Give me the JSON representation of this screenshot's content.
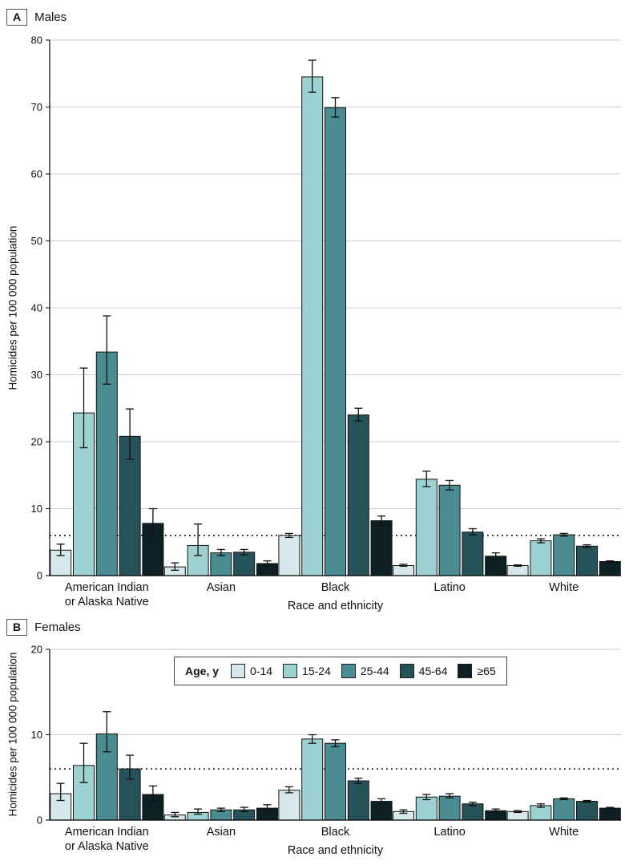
{
  "panels": {
    "a": {
      "letter": "A",
      "title": "Males"
    },
    "b": {
      "letter": "B",
      "title": "Females"
    }
  },
  "legend": {
    "title": "Age, y",
    "items": [
      {
        "label": "0-14",
        "color": "#d6e8ea"
      },
      {
        "label": "15-24",
        "color": "#9ed2d2"
      },
      {
        "label": "25-44",
        "color": "#4b8c93"
      },
      {
        "label": "45-64",
        "color": "#255359"
      },
      {
        "label": "≥65",
        "color": "#0d2125"
      }
    ]
  },
  "colors": {
    "grid": "#cccccc",
    "axis": "#000000",
    "error_bar": "#111111",
    "bar_outline": "#111111",
    "reference_line": "#111111"
  },
  "chart_data": [
    {
      "type": "bar",
      "panel": "A",
      "title": "Males",
      "categories": [
        "American Indian\nor Alaska Native",
        "Asian",
        "Black",
        "Latino",
        "White"
      ],
      "xlabel": "Race and ethnicity",
      "ylabel": "Homicides per 100 000 population",
      "ylim": [
        0,
        80
      ],
      "yticks": [
        0,
        10,
        20,
        30,
        40,
        50,
        60,
        70,
        80
      ],
      "reference_line": 6,
      "grid": true,
      "series": [
        {
          "name": "0-14",
          "values": [
            3.8,
            1.3,
            6.0,
            1.5,
            1.5
          ],
          "err_low": [
            3.0,
            0.8,
            5.7,
            1.4,
            1.4
          ],
          "err_high": [
            4.7,
            1.9,
            6.3,
            1.7,
            1.6
          ]
        },
        {
          "name": "15-24",
          "values": [
            24.3,
            4.5,
            74.5,
            14.4,
            5.2
          ],
          "err_low": [
            19.1,
            3.0,
            72.2,
            13.3,
            4.9
          ],
          "err_high": [
            31.0,
            7.7,
            77.0,
            15.6,
            5.5
          ]
        },
        {
          "name": "25-44",
          "values": [
            33.4,
            3.4,
            69.9,
            13.5,
            6.1
          ],
          "err_low": [
            28.6,
            3.0,
            68.5,
            12.8,
            5.9
          ],
          "err_high": [
            38.8,
            3.9,
            71.4,
            14.2,
            6.3
          ]
        },
        {
          "name": "45-64",
          "values": [
            20.8,
            3.5,
            24.0,
            6.5,
            4.4
          ],
          "err_low": [
            17.4,
            3.1,
            23.1,
            6.1,
            4.2
          ],
          "err_high": [
            24.9,
            3.9,
            25.0,
            7.0,
            4.6
          ]
        },
        {
          "name": "≥65",
          "values": [
            7.8,
            1.8,
            8.2,
            2.9,
            2.1
          ],
          "err_low": [
            5.8,
            1.4,
            7.5,
            2.4,
            2.0
          ],
          "err_high": [
            10.0,
            2.2,
            8.9,
            3.4,
            2.2
          ]
        }
      ]
    },
    {
      "type": "bar",
      "panel": "B",
      "title": "Females",
      "categories": [
        "American Indian\nor Alaska Native",
        "Asian",
        "Black",
        "Latino",
        "White"
      ],
      "xlabel": "Race and ethnicity",
      "ylabel": "Homicides per 100 000 population",
      "ylim": [
        0,
        20
      ],
      "yticks": [
        0,
        10,
        20
      ],
      "reference_line": 6,
      "grid": true,
      "series": [
        {
          "name": "0-14",
          "values": [
            3.1,
            0.6,
            3.5,
            1.0,
            1.0
          ],
          "err_low": [
            2.3,
            0.4,
            3.2,
            0.8,
            0.9
          ],
          "err_high": [
            4.3,
            0.9,
            3.9,
            1.2,
            1.1
          ]
        },
        {
          "name": "15-24",
          "values": [
            6.4,
            0.9,
            9.5,
            2.7,
            1.7
          ],
          "err_low": [
            4.4,
            0.7,
            9.0,
            2.4,
            1.5
          ],
          "err_high": [
            9.0,
            1.3,
            10.0,
            3.0,
            1.9
          ]
        },
        {
          "name": "25-44",
          "values": [
            10.1,
            1.2,
            9.0,
            2.8,
            2.5
          ],
          "err_low": [
            8.0,
            1.0,
            8.6,
            2.6,
            2.4
          ],
          "err_high": [
            12.7,
            1.4,
            9.4,
            3.1,
            2.6
          ]
        },
        {
          "name": "45-64",
          "values": [
            6.0,
            1.2,
            4.6,
            1.9,
            2.2
          ],
          "err_low": [
            4.8,
            1.0,
            4.3,
            1.7,
            2.1
          ],
          "err_high": [
            7.6,
            1.5,
            4.9,
            2.1,
            2.3
          ]
        },
        {
          "name": "≥65",
          "values": [
            3.0,
            1.4,
            2.2,
            1.1,
            1.4
          ],
          "err_low": [
            2.2,
            1.1,
            1.9,
            0.9,
            1.3
          ],
          "err_high": [
            4.0,
            1.8,
            2.5,
            1.3,
            1.5
          ]
        }
      ]
    }
  ]
}
